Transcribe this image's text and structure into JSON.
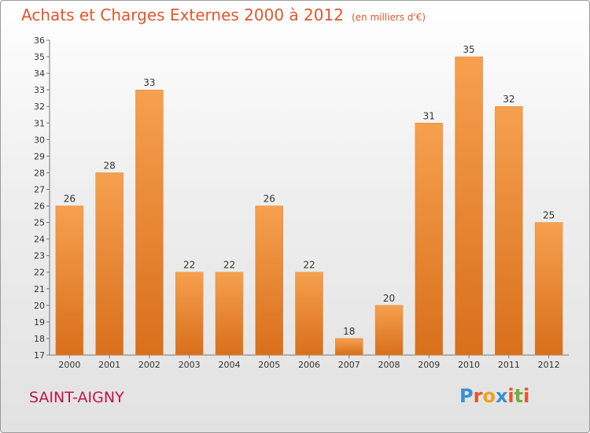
{
  "header": {
    "title": "Achats et Charges Externes 2000 à 2012",
    "unit": "(en milliers d'€)"
  },
  "footer": {
    "commune": "SAINT-AIGNY",
    "logo_letters": [
      "P",
      "r",
      "o",
      "x",
      "i",
      "t",
      "i"
    ]
  },
  "colors": {
    "title": "#e0572b",
    "commune": "#c0154a",
    "bar_top": "#f6a04e",
    "bar_bottom": "#d86f1b",
    "logo": [
      "#3b8fd3",
      "#e8542a",
      "#f0a020",
      "#3b8fd3",
      "#e8542a",
      "#6bb33a",
      "#e8542a"
    ]
  },
  "chart_data": {
    "type": "bar",
    "title": "Achats et Charges Externes 2000 à 2012",
    "subtitle": "(en milliers d'€)",
    "categories": [
      "2000",
      "2001",
      "2002",
      "2003",
      "2004",
      "2005",
      "2006",
      "2007",
      "2008",
      "2009",
      "2010",
      "2011",
      "2012"
    ],
    "values": [
      26,
      28,
      33,
      22,
      22,
      26,
      22,
      18,
      20,
      31,
      35,
      32,
      25
    ],
    "ylim": [
      17,
      36
    ],
    "yticks": [
      17,
      18,
      19,
      20,
      21,
      22,
      23,
      24,
      25,
      26,
      27,
      28,
      29,
      30,
      31,
      32,
      33,
      34,
      35,
      36
    ],
    "grid": false,
    "legend": "none"
  }
}
